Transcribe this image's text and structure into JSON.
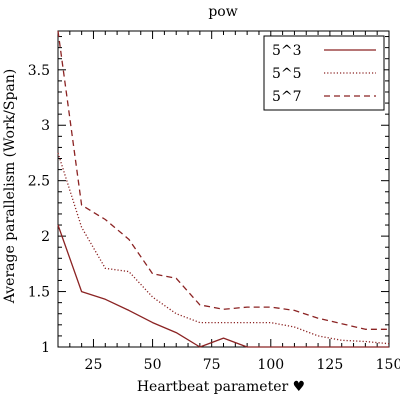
{
  "chart_data": {
    "type": "line",
    "title": "pow",
    "xlabel": "Heartbeat parameter ♥",
    "ylabel": "Average parallelism (Work/Span)",
    "xlim": [
      10,
      150
    ],
    "ylim": [
      1,
      3.85
    ],
    "x_ticks": [
      25,
      50,
      75,
      100,
      125,
      150
    ],
    "y_ticks": [
      1,
      1.5,
      2,
      2.5,
      3,
      3.5
    ],
    "x_tick_labels": [
      "25",
      "50",
      "75",
      "100",
      "125",
      "150"
    ],
    "y_tick_labels": [
      "1",
      "1.5",
      "2",
      "2.5",
      "3",
      "3.5"
    ],
    "grid": false,
    "legend_position": "top-right",
    "x": [
      10,
      20,
      30,
      40,
      50,
      60,
      70,
      80,
      90,
      100,
      110,
      120,
      130,
      140,
      150
    ],
    "series": [
      {
        "name": "5^3",
        "style": "solid",
        "color": "#8b2323",
        "values": [
          2.1,
          1.5,
          1.43,
          1.33,
          1.22,
          1.13,
          1.0,
          1.08,
          1.0,
          1.0,
          1.0,
          1.0,
          1.0,
          1.0,
          1.0
        ]
      },
      {
        "name": "5^5",
        "style": "dotted",
        "color": "#8b2323",
        "values": [
          2.75,
          2.08,
          1.71,
          1.68,
          1.45,
          1.3,
          1.22,
          1.22,
          1.22,
          1.22,
          1.18,
          1.1,
          1.06,
          1.05,
          1.03
        ]
      },
      {
        "name": "5^7",
        "style": "dashed",
        "color": "#8b2323",
        "values": [
          3.85,
          2.28,
          2.15,
          1.97,
          1.66,
          1.62,
          1.38,
          1.34,
          1.36,
          1.36,
          1.33,
          1.26,
          1.21,
          1.16,
          1.16
        ]
      }
    ]
  }
}
